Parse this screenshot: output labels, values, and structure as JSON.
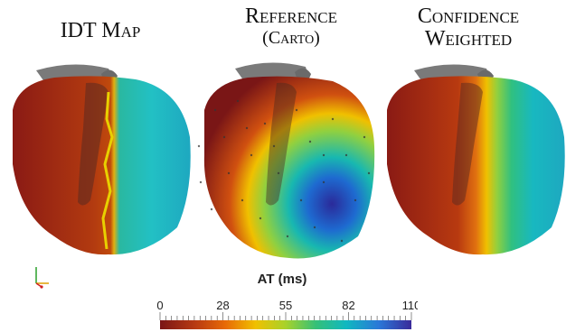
{
  "titles": {
    "idt": "IDT Map",
    "reference_line1": "Reference",
    "reference_line2": "(Carto)",
    "confidence_line1": "Confidence",
    "confidence_line2": "Weighted"
  },
  "colorbar": {
    "label": "AT (ms)",
    "ticks": [
      "0",
      "28",
      "55",
      "82",
      "110"
    ],
    "range": [
      0,
      110
    ],
    "colors": [
      "#7a1616",
      "#b83a12",
      "#e86a06",
      "#f0c000",
      "#a8d22a",
      "#35c078",
      "#10b8c0",
      "#2a78d8",
      "#3a2a9a"
    ]
  }
}
